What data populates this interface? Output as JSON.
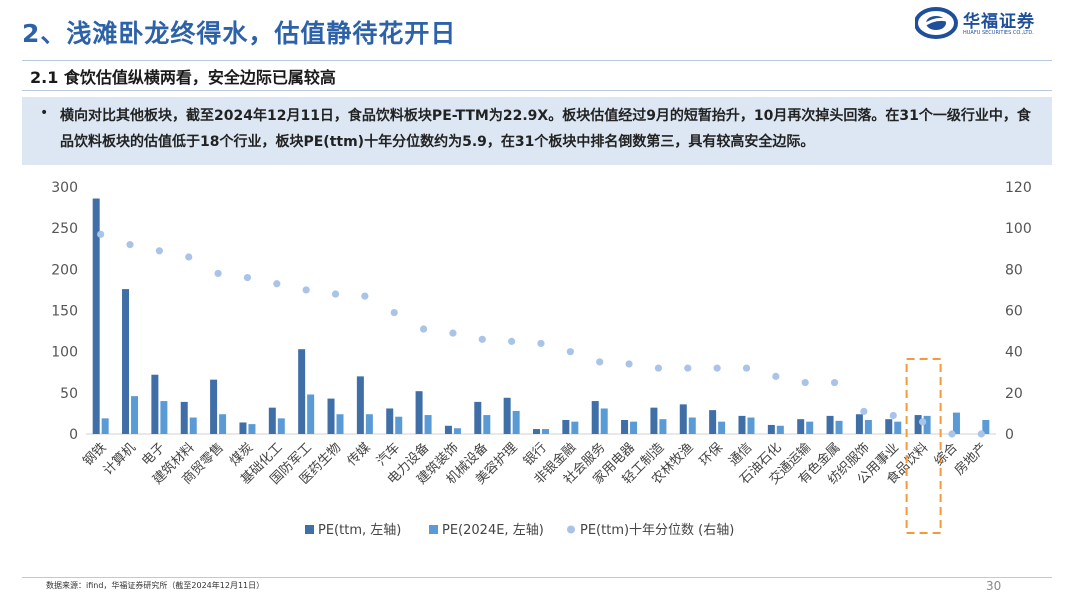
{
  "header": {
    "title": "2、浅滩卧龙终得水，估值静待花开日",
    "logo_cn": "华福证券",
    "logo_en": "HUAFU SECURITIES CO.,LTD."
  },
  "section": {
    "subtitle": "2.1 食饮估值纵横两看，安全边际已属较高"
  },
  "bullet": {
    "marker": "•",
    "text": "横向对比其他板块，截至2024年12月11日，食品饮料板块PE-TTM为22.9X。板块估值经过9月的短暂抬升，10月再次掉头回落。在31个一级行业中，食品饮料板块的估值低于18个行业，板块PE(ttm)十年分位数约为5.9，在31个板块中排名倒数第三，具有较高安全边际。"
  },
  "footer": {
    "source": "数据来源：ifind，华福证券研究所（截至2024年12月11日）",
    "page": "30"
  },
  "chart_data": {
    "type": "bar",
    "categories": [
      "钢铁",
      "计算机",
      "电子",
      "建筑材料",
      "商贸零售",
      "煤炭",
      "基础化工",
      "国防军工",
      "医药生物",
      "传媒",
      "汽车",
      "电力设备",
      "建筑装饰",
      "机械设备",
      "美容护理",
      "银行",
      "非银金融",
      "社会服务",
      "家用电器",
      "轻工制造",
      "农林牧渔",
      "环保",
      "通信",
      "石油石化",
      "交通运输",
      "有色金属",
      "纺织服饰",
      "公用事业",
      "食品饮料",
      "综合",
      "房地产"
    ],
    "series": [
      {
        "name": "PE(ttm, 左轴)",
        "axis": "left",
        "kind": "bar",
        "values": [
          286,
          176,
          72,
          39,
          66,
          14,
          32,
          103,
          43,
          70,
          31,
          52,
          10,
          39,
          44,
          6,
          17,
          40,
          17,
          32,
          36,
          29,
          22,
          11,
          18,
          22,
          24,
          18,
          23,
          0,
          0
        ]
      },
      {
        "name": "PE(2024E, 左轴)",
        "axis": "left",
        "kind": "bar",
        "values": [
          19,
          46,
          40,
          20,
          24,
          12,
          19,
          48,
          24,
          24,
          21,
          23,
          7,
          23,
          28,
          6,
          15,
          31,
          15,
          18,
          20,
          15,
          20,
          10,
          15,
          16,
          17,
          15,
          22,
          26,
          17
        ]
      },
      {
        "name": "PE(ttm)十年分位数 (右轴)",
        "axis": "right",
        "kind": "scatter",
        "values": [
          97,
          92,
          89,
          86,
          78,
          76,
          73,
          70,
          68,
          67,
          59,
          51,
          49,
          46,
          45,
          44,
          40,
          35,
          34,
          32,
          32,
          32,
          32,
          28,
          25,
          25,
          11,
          9,
          5.9,
          0,
          0
        ]
      }
    ],
    "ylim_left": [
      0,
      300
    ],
    "yticks_left": [
      0,
      50,
      100,
      150,
      200,
      250,
      300
    ],
    "ylim_right": [
      0,
      120
    ],
    "yticks_right": [
      0,
      20,
      40,
      60,
      80,
      100,
      120
    ],
    "legend_position": "bottom",
    "highlight_category": "食品饮料",
    "colors": {
      "pe_ttm": "#3f6fa6",
      "pe_2024e": "#5b9bd5",
      "percentile": "#a9c4e8",
      "highlight": "#f59a3c",
      "title": "#2d62a8"
    }
  }
}
